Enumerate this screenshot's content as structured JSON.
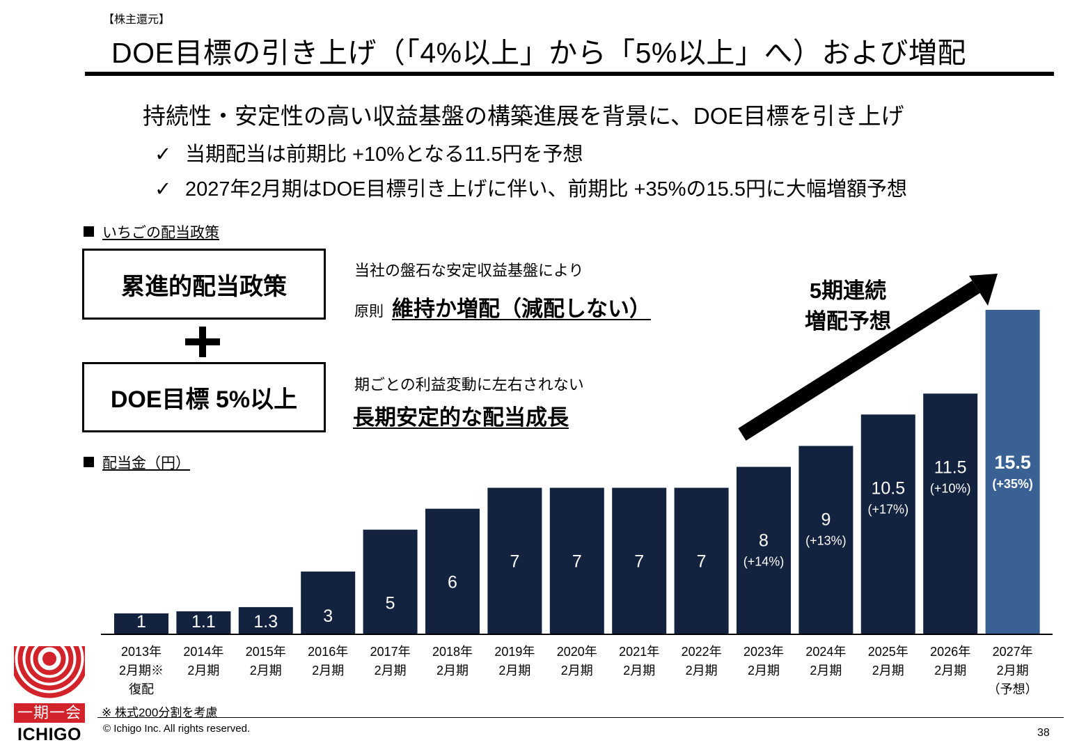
{
  "header": {
    "tag": "【株主還元】",
    "title": "DOE目標の引き上げ（「4%以上」から「5%以上」へ）および増配"
  },
  "lead": "持続性・安定性の高い収益基盤の構築進展を背景に、DOE目標を引き上げ",
  "bullets": [
    {
      "check": "✓",
      "text": "当期配当は前期比 +10%となる11.5円を予想"
    },
    {
      "check": "✓",
      "text": "2027年2月期はDOE目標引き上げに伴い、前期比 +35%の15.5円に大幅増額予想"
    }
  ],
  "policy": {
    "section_label": "いちごの配当政策",
    "box1": "累進的配当政策",
    "box2": "DOE目標 5%以上",
    "desc1_small": "当社の盤石な安定収益基盤により",
    "desc1_prefix": "原則",
    "desc1_bold": "維持か増配（減配しない）",
    "desc2_small": "期ごとの利益変動に左右されない",
    "desc2_bold": "長期安定的な配当成長"
  },
  "dividend_section_label": "配当金（円）",
  "arrow_label": [
    "5期連続",
    "増配予想"
  ],
  "footnote": "※ 株式200分割を考慮",
  "footer": {
    "copyright": "© Ichigo Inc. All rights reserved.",
    "page_number": "38",
    "logo_kanji": "一期一会",
    "logo_word": "ICHIGO"
  },
  "colors": {
    "bar": "#13233f",
    "bar_forecast": "#3a6193",
    "logo_red": "#d2232a"
  },
  "chart_data": {
    "type": "bar",
    "ylabel": "配当金（円）",
    "categories": [
      [
        "2013年",
        "2月期※",
        "復配"
      ],
      [
        "2014年",
        "2月期"
      ],
      [
        "2015年",
        "2月期"
      ],
      [
        "2016年",
        "2月期"
      ],
      [
        "2017年",
        "2月期"
      ],
      [
        "2018年",
        "2月期"
      ],
      [
        "2019年",
        "2月期"
      ],
      [
        "2020年",
        "2月期"
      ],
      [
        "2021年",
        "2月期"
      ],
      [
        "2022年",
        "2月期"
      ],
      [
        "2023年",
        "2月期"
      ],
      [
        "2024年",
        "2月期"
      ],
      [
        "2025年",
        "2月期"
      ],
      [
        "2026年",
        "2月期"
      ],
      [
        "2027年",
        "2月期",
        "（予想）"
      ]
    ],
    "values": [
      1,
      1.1,
      1.3,
      3,
      5,
      6,
      7,
      7,
      7,
      7,
      8,
      9,
      10.5,
      11.5,
      15.5
    ],
    "value_labels": [
      "1",
      "1.1",
      "1.3",
      "3",
      "5",
      "6",
      "7",
      "7",
      "7",
      "7",
      "8",
      "9",
      "10.5",
      "11.5",
      "15.5"
    ],
    "growth_labels": [
      "",
      "",
      "",
      "",
      "",
      "",
      "",
      "",
      "",
      "",
      "(+14%)",
      "(+13%)",
      "(+17%)",
      "(+10%)",
      "(+35%)"
    ],
    "forecast_index": 14,
    "ylim": [
      0,
      15.5
    ]
  }
}
